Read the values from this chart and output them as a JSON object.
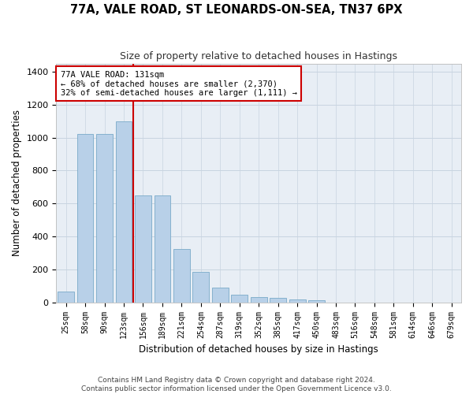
{
  "title": "77A, VALE ROAD, ST LEONARDS-ON-SEA, TN37 6PX",
  "subtitle": "Size of property relative to detached houses in Hastings",
  "xlabel": "Distribution of detached houses by size in Hastings",
  "ylabel": "Number of detached properties",
  "categories": [
    "25sqm",
    "58sqm",
    "90sqm",
    "123sqm",
    "156sqm",
    "189sqm",
    "221sqm",
    "254sqm",
    "287sqm",
    "319sqm",
    "352sqm",
    "385sqm",
    "417sqm",
    "450sqm",
    "483sqm",
    "516sqm",
    "548sqm",
    "581sqm",
    "614sqm",
    "646sqm",
    "679sqm"
  ],
  "values": [
    65,
    1020,
    1020,
    1100,
    650,
    650,
    325,
    185,
    90,
    45,
    30,
    25,
    20,
    15,
    0,
    0,
    0,
    0,
    0,
    0,
    0
  ],
  "bar_color": "#b8d0e8",
  "bar_edge_color": "#7aaac8",
  "vline_color": "#cc0000",
  "vline_x": 3.5,
  "annotation_text": "77A VALE ROAD: 131sqm\n← 68% of detached houses are smaller (2,370)\n32% of semi-detached houses are larger (1,111) →",
  "annotation_box_color": "#ffffff",
  "annotation_box_edge": "#cc0000",
  "footer_text": "Contains HM Land Registry data © Crown copyright and database right 2024.\nContains public sector information licensed under the Open Government Licence v3.0.",
  "background_color": "#ffffff",
  "plot_bg_color": "#e8eef5",
  "grid_color": "#c8d4e0",
  "ylim": [
    0,
    1450
  ],
  "yticks": [
    0,
    200,
    400,
    600,
    800,
    1000,
    1200,
    1400
  ]
}
